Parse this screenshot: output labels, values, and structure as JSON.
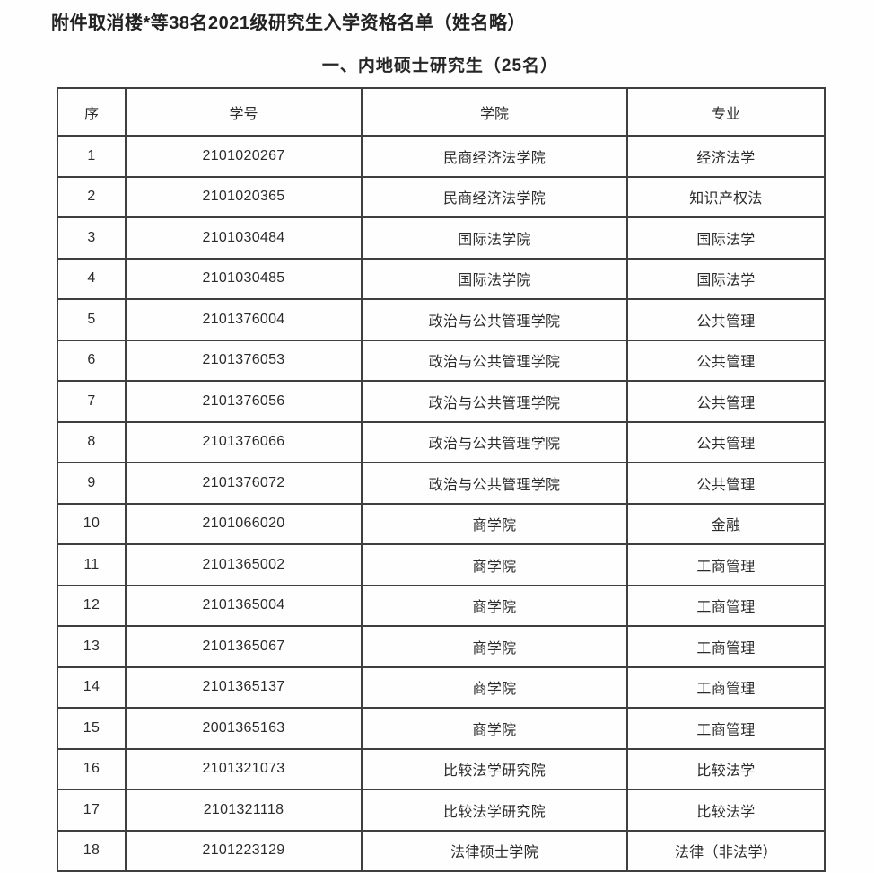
{
  "page": {
    "title": "附件取消楼*等38名2021级研究生入学资格名单（姓名略）",
    "section_title": "一、内地硕士研究生（25名）"
  },
  "table": {
    "columns": [
      "序",
      "学号",
      "学院",
      "专业"
    ],
    "rows": [
      [
        "1",
        "2101020267",
        "民商经济法学院",
        "经济法学"
      ],
      [
        "2",
        "2101020365",
        "民商经济法学院",
        "知识产权法"
      ],
      [
        "3",
        "2101030484",
        "国际法学院",
        "国际法学"
      ],
      [
        "4",
        "2101030485",
        "国际法学院",
        "国际法学"
      ],
      [
        "5",
        "2101376004",
        "政治与公共管理学院",
        "公共管理"
      ],
      [
        "6",
        "2101376053",
        "政治与公共管理学院",
        "公共管理"
      ],
      [
        "7",
        "2101376056",
        "政治与公共管理学院",
        "公共管理"
      ],
      [
        "8",
        "2101376066",
        "政治与公共管理学院",
        "公共管理"
      ],
      [
        "9",
        "2101376072",
        "政治与公共管理学院",
        "公共管理"
      ],
      [
        "10",
        "2101066020",
        "商学院",
        "金融"
      ],
      [
        "11",
        "2101365002",
        "商学院",
        "工商管理"
      ],
      [
        "12",
        "2101365004",
        "商学院",
        "工商管理"
      ],
      [
        "13",
        "2101365067",
        "商学院",
        "工商管理"
      ],
      [
        "14",
        "2101365137",
        "商学院",
        "工商管理"
      ],
      [
        "15",
        "2001365163",
        "商学院",
        "工商管理"
      ],
      [
        "16",
        "2101321073",
        "比较法学研究院",
        "比较法学"
      ],
      [
        "17",
        "2101321118",
        "比较法学研究院",
        "比较法学"
      ],
      [
        "18",
        "2101223129",
        "法律硕士学院",
        "法律（非法学）"
      ]
    ]
  },
  "colors": {
    "background": "#fefefe",
    "text": "#2b2b2b",
    "border": "#3f3f3f"
  }
}
